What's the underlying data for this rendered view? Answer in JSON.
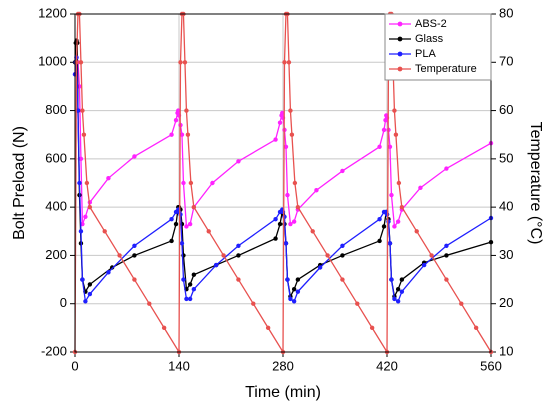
{
  "chart_data": {
    "type": "line",
    "xlabel": "Time (min)",
    "ylabel": "Bolt Preload (N)",
    "y2label": "Temperature (°C)",
    "xlim": [
      0,
      560
    ],
    "xticks": [
      0,
      140,
      280,
      420,
      560
    ],
    "ylim": [
      -200,
      1200
    ],
    "yticks": [
      -200,
      0,
      200,
      400,
      600,
      800,
      1000,
      1200
    ],
    "y2lim": [
      10,
      80
    ],
    "y2ticks": [
      10,
      20,
      30,
      40,
      50,
      60,
      70,
      80
    ],
    "grid": true,
    "legend": "top-right",
    "series": [
      {
        "name": "ABS-2",
        "color": "#ff22ff",
        "x": [
          0,
          2,
          4,
          6,
          8,
          10,
          14,
          20,
          45,
          80,
          130,
          136,
          138,
          139,
          140,
          142,
          144,
          146,
          150,
          155,
          160,
          185,
          220,
          270,
          276,
          278,
          279,
          280,
          282,
          284,
          286,
          290,
          295,
          300,
          325,
          360,
          410,
          416,
          418,
          419,
          420,
          422,
          424,
          426,
          430,
          435,
          440,
          465,
          500,
          560
        ],
        "values": [
          950,
          1020,
          1000,
          900,
          600,
          330,
          360,
          420,
          520,
          610,
          700,
          760,
          790,
          800,
          780,
          740,
          700,
          500,
          320,
          330,
          400,
          500,
          590,
          680,
          750,
          780,
          790,
          770,
          720,
          650,
          450,
          330,
          340,
          390,
          470,
          550,
          650,
          720,
          760,
          780,
          770,
          720,
          650,
          450,
          320,
          340,
          390,
          480,
          560,
          665
        ]
      },
      {
        "name": "Glass",
        "color": "#000000",
        "x": [
          0,
          1,
          2,
          3,
          4,
          6,
          8,
          10,
          14,
          20,
          50,
          80,
          130,
          136,
          139,
          140,
          142,
          144,
          146,
          150,
          155,
          160,
          190,
          220,
          270,
          276,
          279,
          280,
          282,
          284,
          286,
          290,
          295,
          300,
          330,
          360,
          410,
          416,
          419,
          420,
          422,
          424,
          426,
          430,
          435,
          440,
          470,
          500,
          560
        ],
        "values": [
          1000,
          1080,
          1090,
          1080,
          800,
          450,
          250,
          100,
          50,
          80,
          150,
          200,
          260,
          330,
          400,
          400,
          390,
          330,
          200,
          60,
          80,
          120,
          160,
          200,
          270,
          330,
          380,
          370,
          330,
          250,
          100,
          30,
          60,
          100,
          160,
          200,
          260,
          320,
          380,
          370,
          350,
          250,
          100,
          30,
          60,
          100,
          170,
          200,
          255
        ]
      },
      {
        "name": "PLA",
        "color": "#1f1fff",
        "x": [
          0,
          1,
          2,
          4,
          6,
          8,
          10,
          14,
          20,
          45,
          80,
          130,
          136,
          139,
          140,
          142,
          144,
          146,
          150,
          155,
          160,
          190,
          220,
          270,
          276,
          279,
          280,
          282,
          284,
          286,
          290,
          295,
          300,
          330,
          360,
          410,
          416,
          419,
          420,
          422,
          424,
          426,
          430,
          435,
          440,
          470,
          500,
          560
        ],
        "values": [
          950,
          1000,
          1020,
          800,
          500,
          300,
          100,
          10,
          40,
          130,
          240,
          350,
          380,
          390,
          380,
          370,
          250,
          100,
          20,
          20,
          60,
          160,
          240,
          350,
          380,
          390,
          380,
          360,
          250,
          100,
          20,
          10,
          50,
          150,
          240,
          350,
          380,
          380,
          370,
          340,
          250,
          100,
          20,
          10,
          50,
          160,
          240,
          355
        ]
      },
      {
        "name": "Temperature",
        "color": "#e8514f",
        "axis": "y2",
        "x": [
          0,
          2,
          4,
          6,
          8,
          10,
          12,
          16,
          20,
          40,
          60,
          80,
          100,
          120,
          140,
          142,
          144,
          146,
          148,
          150,
          152,
          156,
          160,
          180,
          200,
          220,
          240,
          260,
          280,
          282,
          284,
          286,
          288,
          290,
          292,
          296,
          300,
          320,
          340,
          360,
          380,
          400,
          420,
          422,
          424,
          426,
          428,
          430,
          432,
          436,
          440,
          460,
          480,
          500,
          520,
          540,
          560
        ],
        "values": [
          10,
          70,
          80,
          80,
          70,
          60,
          55,
          45,
          40,
          35,
          30,
          25,
          20,
          15,
          10,
          70,
          80,
          80,
          70,
          60,
          55,
          45,
          40,
          35,
          30,
          25,
          20,
          15,
          10,
          70,
          80,
          80,
          70,
          60,
          55,
          45,
          40,
          35,
          30,
          25,
          20,
          15,
          10,
          70,
          80,
          80,
          70,
          60,
          55,
          45,
          40,
          35,
          30,
          25,
          20,
          15,
          10
        ]
      }
    ]
  }
}
